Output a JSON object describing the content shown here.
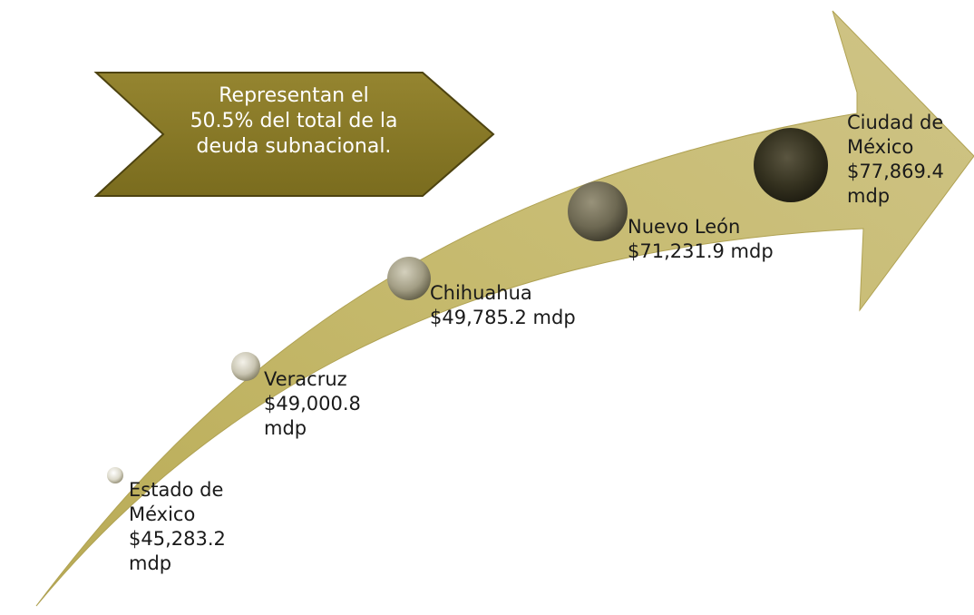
{
  "callout": {
    "lines": [
      "Representan el",
      "50.5% del total de la",
      "deuda subnacional."
    ]
  },
  "milestones": [
    {
      "lines": [
        "Estado de",
        "México",
        "$45,283.2",
        "mdp"
      ]
    },
    {
      "lines": [
        "Veracruz",
        "$49,000.8",
        "mdp"
      ]
    },
    {
      "lines": [
        "Chihuahua",
        "$49,785.2 mdp"
      ]
    },
    {
      "lines": [
        "Nuevo León",
        "$71,231.9 mdp"
      ]
    },
    {
      "lines": [
        "Ciudad de",
        "México",
        "$77,869.4",
        "mdp"
      ]
    }
  ],
  "colors": {
    "arrow": "#c4b86a",
    "arrow_dark": "#a89a4a",
    "callout": "#8a7a25",
    "callout_edge": "#4d4310",
    "marker_light": "#e8e6dc",
    "marker_dark": "#2c291e"
  }
}
